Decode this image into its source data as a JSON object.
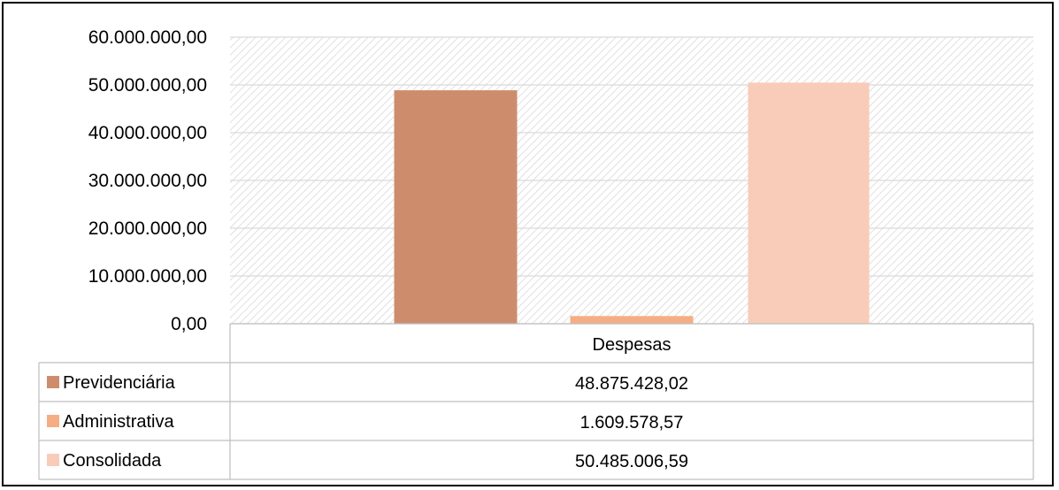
{
  "chart_data": {
    "type": "bar",
    "categories": [
      "Despesas"
    ],
    "series": [
      {
        "name": "Previdenciária",
        "values": [
          48875428.02
        ],
        "label": "48.875.428,02",
        "color": "#CD8D6D"
      },
      {
        "name": "Administrativa",
        "values": [
          1609578.57
        ],
        "label": "1.609.578,57",
        "color": "#F5AE84"
      },
      {
        "name": "Consolidada",
        "values": [
          50485006.59
        ],
        "label": "50.485.006,59",
        "color": "#F9CCB9"
      }
    ],
    "yticks": [
      "0,00",
      "10.000.000,00",
      "20.000.000,00",
      "30.000.000,00",
      "40.000.000,00",
      "50.000.000,00",
      "60.000.000,00"
    ],
    "ylim": [
      0,
      60000000
    ],
    "grid": true,
    "legend": "data-table"
  }
}
